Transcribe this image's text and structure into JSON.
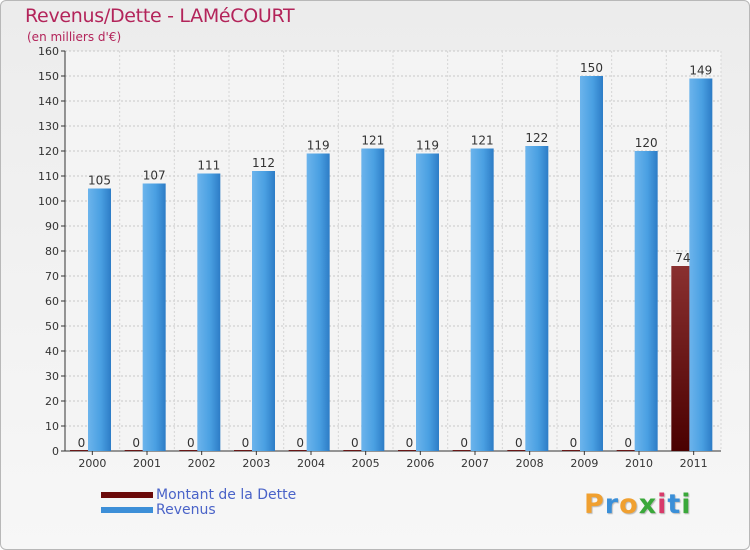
{
  "header": {
    "title": "Revenus/Dette - LAMéCOURT",
    "subtitle": "(en milliers d'€)"
  },
  "legend": [
    {
      "label": "Montant de la Dette",
      "color": "#6b0a0a"
    },
    {
      "label": "Revenus",
      "color": "#3d8fd8"
    }
  ],
  "logo": {
    "text": "Proxiti"
  },
  "chart_data": {
    "type": "bar",
    "title": "Revenus/Dette - LAMéCOURT",
    "ylabel": "(en milliers d'€)",
    "xlabel": "",
    "ylim": [
      0,
      160
    ],
    "yticks": [
      0,
      10,
      20,
      30,
      40,
      50,
      60,
      70,
      80,
      90,
      100,
      110,
      120,
      130,
      140,
      150,
      160
    ],
    "grid": true,
    "legend_position": "bottom-left",
    "categories": [
      "2000",
      "2001",
      "2002",
      "2003",
      "2004",
      "2005",
      "2006",
      "2007",
      "2008",
      "2009",
      "2010",
      "2011"
    ],
    "series": [
      {
        "name": "Montant de la Dette",
        "color": "#6b0a0a",
        "values": [
          0,
          0,
          0,
          0,
          0,
          0,
          0,
          0,
          0,
          0,
          0,
          74
        ]
      },
      {
        "name": "Revenus",
        "color": "#3d8fd8",
        "values": [
          105,
          107,
          111,
          112,
          119,
          121,
          119,
          121,
          122,
          150,
          120,
          149
        ]
      }
    ]
  }
}
